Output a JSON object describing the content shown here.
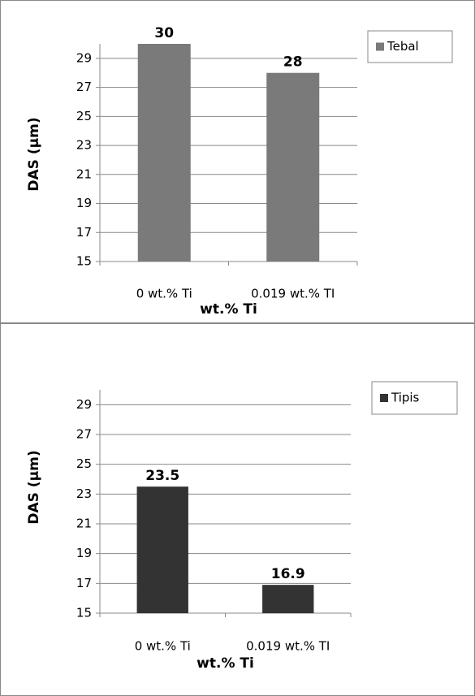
{
  "chart_data": [
    {
      "type": "bar",
      "xlabel": "wt.% Ti",
      "ylabel": "DAS (µm)",
      "categories": [
        "0 wt.% Ti",
        "0.019 wt.% TI"
      ],
      "series": [
        {
          "name": "Tebal",
          "color": "#7a7a7a",
          "values": [
            30,
            28
          ]
        }
      ],
      "ylim": [
        15,
        30
      ],
      "yticks": [
        15,
        17,
        19,
        21,
        23,
        25,
        27,
        29
      ],
      "grid": true,
      "legend": "top-right"
    },
    {
      "type": "bar",
      "xlabel": "wt.% Ti",
      "ylabel": "DAS (µm)",
      "categories": [
        "0 wt.% Ti",
        "0.019 wt.% TI"
      ],
      "series": [
        {
          "name": "Tipis",
          "color": "#333333",
          "values": [
            23.5,
            16.9
          ]
        }
      ],
      "ylim": [
        15,
        30
      ],
      "yticks": [
        15,
        17,
        19,
        21,
        23,
        25,
        27,
        29
      ],
      "grid": true,
      "legend": "top-right"
    }
  ]
}
